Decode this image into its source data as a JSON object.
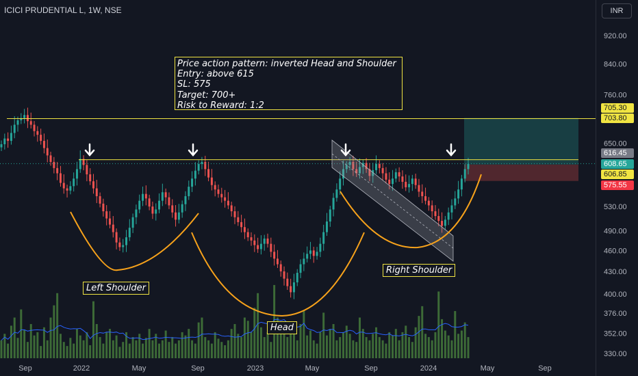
{
  "header": {
    "title": "ICICI PRUDENTIAL L, 1W, NSE",
    "currency": "INR"
  },
  "annotation": {
    "lines": [
      "Price action pattern: inverted Head and Shoulder",
      "Entry: above 615",
      "SL: 575",
      "Target: 700+",
      "Risk to Reward: 1:2"
    ]
  },
  "labels": {
    "left_shoulder": "Left Shoulder",
    "head": "Head",
    "right_shoulder": "Right Shoulder"
  },
  "price_badges": [
    {
      "value": "705.30",
      "bg": "#f0e442",
      "fg": "#131722"
    },
    {
      "value": "703.80",
      "bg": "#f0e442",
      "fg": "#131722"
    },
    {
      "value": "616.45",
      "bg": "#787b86",
      "fg": "#ffffff"
    },
    {
      "value": "608.65",
      "bg": "#26a69a",
      "fg": "#ffffff"
    },
    {
      "value": "606.85",
      "bg": "#f0e442",
      "fg": "#131722"
    },
    {
      "value": "575.55",
      "bg": "#f23645",
      "fg": "#ffffff"
    }
  ],
  "colors": {
    "up": "#26a69a",
    "down": "#ef5350",
    "level_line": "#f0e442",
    "curve": "#f7a21b",
    "volume": "#3d6b37",
    "volume_ma": "#2962ff"
  },
  "chart_data": {
    "type": "candlestick",
    "symbol": "ICICI PRUDENTIAL L",
    "interval": "1W",
    "exchange": "NSE",
    "y_scale": "log",
    "y_ticks": [
      920,
      840,
      760,
      705.3,
      650,
      608.65,
      575.55,
      530,
      490,
      460,
      430,
      400,
      376,
      352,
      330
    ],
    "y_tick_labels": [
      "920.00",
      "840.00",
      "760.00",
      "705.30",
      "650.00",
      "608.65",
      "575.55",
      "530.00",
      "490.00",
      "460.00",
      "430.00",
      "400.00",
      "376.00",
      "352.00",
      "330.00"
    ],
    "x_tick_labels": [
      "Sep",
      "2022",
      "May",
      "Sep",
      "2023",
      "May",
      "Sep",
      "2024",
      "May",
      "Sep"
    ],
    "levels": [
      703.8,
      616.45
    ],
    "last_close": 608.65,
    "entry": 606.85,
    "stop_loss": 575.55,
    "target": 705.3,
    "closes": [
      648,
      660,
      655,
      672,
      690,
      700,
      705,
      712,
      698,
      690,
      676,
      668,
      655,
      640,
      625,
      612,
      600,
      590,
      572,
      562,
      558,
      566,
      580,
      598,
      618,
      606,
      588,
      575,
      562,
      548,
      535,
      522,
      510,
      500,
      488,
      472,
      465,
      468,
      480,
      495,
      512,
      525,
      540,
      552,
      544,
      530,
      518,
      525,
      540,
      555,
      546,
      532,
      520,
      508,
      520,
      534,
      548,
      565,
      580,
      595,
      608,
      612,
      598,
      582,
      568,
      560,
      552,
      546,
      540,
      532,
      522,
      512,
      504,
      496,
      488,
      480,
      475,
      468,
      462,
      470,
      478,
      470,
      458,
      448,
      440,
      430,
      420,
      410,
      402,
      415,
      428,
      440,
      448,
      455,
      460,
      452,
      458,
      470,
      488,
      505,
      525,
      545,
      560,
      580,
      598,
      606,
      612,
      598,
      590,
      602,
      610,
      598,
      585,
      596,
      608,
      600,
      590,
      578,
      570,
      580,
      592,
      584,
      574,
      564,
      570,
      580,
      568,
      556,
      548,
      540,
      532,
      522,
      514,
      506,
      498,
      508,
      520,
      532,
      544,
      560,
      580,
      598,
      608
    ],
    "volumes": [
      352,
      360,
      348,
      370,
      380,
      355,
      390,
      365,
      350,
      372,
      358,
      362,
      345,
      368,
      352,
      380,
      395,
      410,
      360,
      350,
      345,
      355,
      348,
      366,
      358,
      352,
      362,
      346,
      400,
      372,
      356,
      348,
      362,
      366,
      352,
      358,
      344,
      350,
      362,
      348,
      356,
      352,
      360,
      348,
      355,
      366,
      352,
      360,
      348,
      352,
      364,
      350,
      356,
      348,
      352,
      362,
      358,
      366,
      352,
      348,
      374,
      380,
      356,
      352,
      348,
      362,
      354,
      350,
      346,
      352,
      366,
      372,
      360,
      356,
      380,
      376,
      362,
      392,
      410,
      368,
      356,
      362,
      350,
      420,
      380,
      364,
      372,
      356,
      360,
      366,
      352,
      372,
      388,
      358,
      364,
      352,
      348,
      362,
      386,
      358,
      366,
      372,
      352,
      356,
      362,
      370,
      360,
      352,
      350,
      380,
      366,
      356,
      352,
      360,
      368,
      356,
      352,
      348,
      362,
      358,
      366,
      352,
      362,
      370,
      356,
      350,
      368,
      382,
      394,
      360,
      356,
      352,
      362,
      412,
      378,
      364,
      358,
      352,
      388,
      360,
      364,
      374,
      356
    ]
  }
}
